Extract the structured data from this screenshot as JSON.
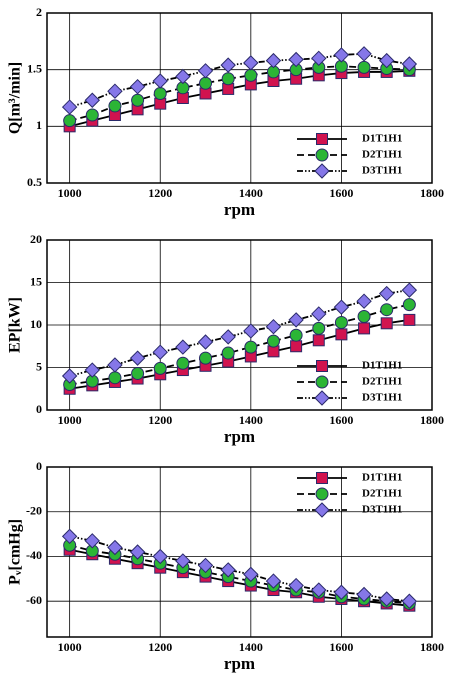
{
  "chart_data": [
    {
      "type": "line",
      "x_label": "rpm",
      "y_label": "Q[m³/min]",
      "x": [
        1000,
        1050,
        1100,
        1150,
        1200,
        1250,
        1300,
        1350,
        1400,
        1450,
        1500,
        1550,
        1600,
        1650,
        1700,
        1750
      ],
      "xlim": [
        950,
        1800
      ],
      "xticks": [
        1000,
        1200,
        1400,
        1600,
        1800
      ],
      "ylim": [
        0.5,
        2
      ],
      "yticks": [
        0.5,
        1,
        1.5,
        2
      ],
      "grid": true,
      "legend": "lower right",
      "series": [
        {
          "name": "D1T1H1",
          "color": "#d1134f",
          "marker": "square",
          "line_style": "solid",
          "values": [
            1.0,
            1.05,
            1.1,
            1.15,
            1.2,
            1.25,
            1.29,
            1.33,
            1.37,
            1.4,
            1.42,
            1.45,
            1.47,
            1.48,
            1.48,
            1.49
          ]
        },
        {
          "name": "D2T1H1",
          "color": "#2bb535",
          "marker": "circle",
          "line_style": "dashed",
          "values": [
            1.05,
            1.1,
            1.18,
            1.23,
            1.29,
            1.34,
            1.38,
            1.42,
            1.45,
            1.48,
            1.5,
            1.52,
            1.53,
            1.52,
            1.51,
            1.5
          ]
        },
        {
          "name": "D3T1H1",
          "color": "#8577e8",
          "marker": "diamond",
          "line_style": "dashdot",
          "values": [
            1.17,
            1.23,
            1.31,
            1.35,
            1.4,
            1.44,
            1.49,
            1.54,
            1.56,
            1.58,
            1.59,
            1.6,
            1.63,
            1.64,
            1.58,
            1.55
          ]
        }
      ]
    },
    {
      "type": "line",
      "x_label": "rpm",
      "y_label": "EP[kW]",
      "x": [
        1000,
        1050,
        1100,
        1150,
        1200,
        1250,
        1300,
        1350,
        1400,
        1450,
        1500,
        1550,
        1600,
        1650,
        1700,
        1750
      ],
      "xlim": [
        950,
        1800
      ],
      "xticks": [
        1000,
        1200,
        1400,
        1600,
        1800
      ],
      "ylim": [
        0,
        20
      ],
      "yticks": [
        0,
        5,
        10,
        15,
        20
      ],
      "grid": true,
      "legend": "lower right",
      "series": [
        {
          "name": "D1T1H1",
          "color": "#d1134f",
          "marker": "square",
          "line_style": "solid",
          "values": [
            2.5,
            2.9,
            3.3,
            3.7,
            4.2,
            4.7,
            5.2,
            5.7,
            6.3,
            6.9,
            7.5,
            8.2,
            8.9,
            9.6,
            10.2,
            10.6
          ]
        },
        {
          "name": "D2T1H1",
          "color": "#2bb535",
          "marker": "circle",
          "line_style": "dashed",
          "values": [
            3.0,
            3.4,
            3.8,
            4.3,
            4.9,
            5.5,
            6.1,
            6.7,
            7.4,
            8.1,
            8.8,
            9.6,
            10.3,
            11.0,
            11.8,
            12.4
          ]
        },
        {
          "name": "D3T1H1",
          "color": "#8577e8",
          "marker": "diamond",
          "line_style": "dashdot",
          "values": [
            4.0,
            4.7,
            5.3,
            6.1,
            6.8,
            7.4,
            8.0,
            8.6,
            9.3,
            9.8,
            10.6,
            11.3,
            12.1,
            12.8,
            13.7,
            14.1
          ]
        }
      ]
    },
    {
      "type": "line",
      "x_label": "rpm",
      "y_label": "Pᵥ[cmHg]",
      "x": [
        1000,
        1050,
        1100,
        1150,
        1200,
        1250,
        1300,
        1350,
        1400,
        1450,
        1500,
        1550,
        1600,
        1650,
        1700,
        1750
      ],
      "xlim": [
        950,
        1800
      ],
      "xticks": [
        1000,
        1200,
        1400,
        1600,
        1800
      ],
      "ylim": [
        -76,
        0
      ],
      "yticks": [
        -60,
        -40,
        -20,
        0
      ],
      "grid": true,
      "legend": "upper right",
      "series": [
        {
          "name": "D1T1H1",
          "color": "#d1134f",
          "marker": "square",
          "line_style": "solid",
          "values": [
            -37,
            -39,
            -41,
            -43,
            -45,
            -47,
            -49,
            -51,
            -53,
            -55,
            -56,
            -58,
            -59,
            -60,
            -61,
            -62
          ]
        },
        {
          "name": "D2T1H1",
          "color": "#2bb535",
          "marker": "circle",
          "line_style": "dashed",
          "values": [
            -35,
            -37.5,
            -39,
            -41,
            -43,
            -45,
            -47,
            -49,
            -51,
            -53,
            -55,
            -56,
            -58,
            -59,
            -60,
            -61
          ]
        },
        {
          "name": "D3T1H1",
          "color": "#8577e8",
          "marker": "diamond",
          "line_style": "dashdot",
          "values": [
            -31,
            -33,
            -36,
            -38,
            -40,
            -42,
            -44,
            -46,
            -48,
            -51,
            -53,
            -55,
            -56,
            -57,
            -59,
            -60
          ]
        }
      ]
    }
  ]
}
